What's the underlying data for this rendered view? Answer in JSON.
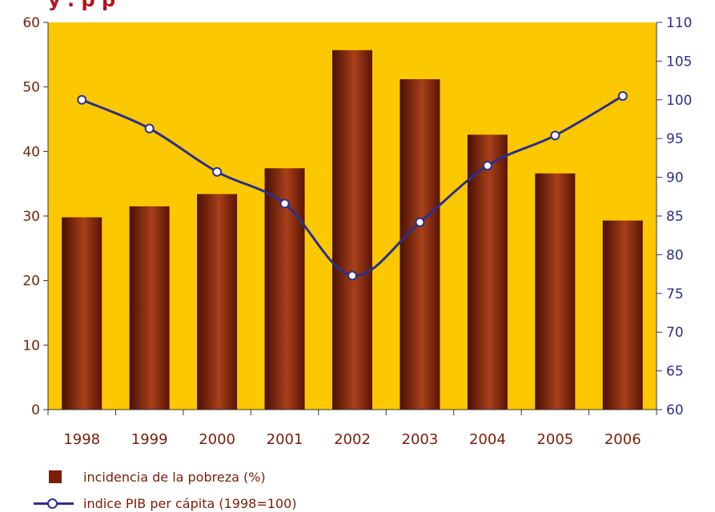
{
  "title_visible": "y . p   p",
  "chart_data": {
    "type": "bar+line",
    "categories": [
      "1998",
      "1999",
      "2000",
      "2001",
      "2002",
      "2003",
      "2004",
      "2005",
      "2006"
    ],
    "series": [
      {
        "name": "incidencia de la pobreza (%)",
        "type": "bar",
        "axis": "left",
        "values": [
          29.8,
          31.5,
          33.4,
          37.4,
          55.7,
          51.2,
          42.6,
          36.6,
          29.3
        ]
      },
      {
        "name": "indice PIB per cápita (1998=100)",
        "type": "line",
        "axis": "right",
        "values": [
          100.0,
          96.3,
          90.7,
          86.6,
          77.3,
          84.2,
          91.5,
          95.4,
          100.5
        ]
      }
    ],
    "y_left": {
      "ylim": [
        0,
        60
      ],
      "ticks": [
        0,
        10,
        20,
        30,
        40,
        50,
        60
      ]
    },
    "y_right": {
      "ylim": [
        60,
        110
      ],
      "ticks": [
        60,
        65,
        70,
        75,
        80,
        85,
        90,
        95,
        100,
        105,
        110
      ]
    },
    "grid": false,
    "legend_position": "bottom-left"
  },
  "colors": {
    "plot_background": "#fbc800",
    "bar_dark": "#5a1405",
    "bar_light": "#a8401a",
    "line": "#2b2f8e",
    "text_left": "#7a1e08",
    "text_right": "#2b2f8e"
  }
}
